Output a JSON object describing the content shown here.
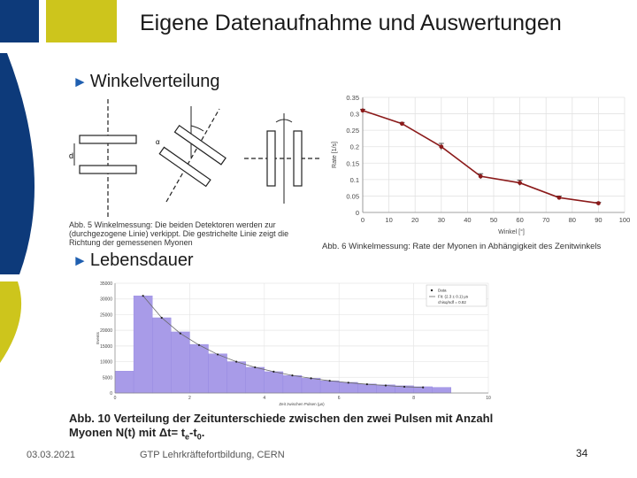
{
  "slide": {
    "title": "Eigene Datenaufnahme und Auswertungen",
    "bullet1": "Winkelverteilung",
    "bullet2": "Lebensdauer",
    "bullet_arrow": "►",
    "caption_abb5": "Abb. 5 Winkelmessung: Die beiden Detektoren werden zur (durchgezogene Linie) verkippt. Die gestrichelte Linie zeigt die Richtung der gemessenen Myonen",
    "caption_abb6": "Abb. 6 Winkelmessung: Rate der Myonen in Abhängigkeit des Zenitwinkels",
    "caption_abb10_line1": "Abb. 10 Verteilung der Zeitunterschiede zwischen den zwei Pulsen mit Anzahl",
    "caption_abb10_line2": "Myonen N(t) mit Δt= t",
    "caption_abb10_sub1": "e",
    "caption_abb10_mid": "-t",
    "caption_abb10_sub2": "0",
    "caption_abb10_end": ".",
    "detector_label_d": "d",
    "diagram_label_alpha": "α",
    "footer_date": "03.03.2021",
    "footer_org": "GTP Lehrkräftefortbildung, CERN",
    "page_number": "34",
    "colors": {
      "blue": "#0d3a7a",
      "yellow": "#cdc51c",
      "line": "#8b1a1a",
      "bars": "#a89be8"
    }
  },
  "chart_data": [
    {
      "type": "line",
      "x": [
        0,
        15,
        30,
        45,
        60,
        75,
        90
      ],
      "series": [
        {
          "values": [
            0.31,
            0.27,
            0.2,
            0.11,
            0.09,
            0.045,
            0.028
          ]
        }
      ],
      "error_bars": [
        0.004,
        0.004,
        0.01,
        0.008,
        0.008,
        0.005,
        0.003
      ],
      "xlabel": "Winkel [°]",
      "ylabel": "Rate [1/s]",
      "xlim": [
        0,
        100
      ],
      "ylim": [
        0,
        0.35
      ],
      "xticks": [
        "0",
        "10",
        "20",
        "30",
        "40",
        "50",
        "60",
        "70",
        "80",
        "90",
        "100"
      ],
      "yticks": [
        "0",
        "0.05",
        "0.1",
        "0.15",
        "0.2",
        "0.25",
        "0.3",
        "0.35"
      ],
      "grid": true
    },
    {
      "type": "bar",
      "bins": [
        0,
        0.5,
        1,
        1.5,
        2,
        2.5,
        3,
        3.5,
        4,
        4.5,
        5,
        5.5,
        6,
        6.5,
        7,
        7.5,
        8,
        8.5
      ],
      "values": [
        7000,
        31000,
        24000,
        19500,
        15500,
        12500,
        10000,
        8200,
        6800,
        5600,
        4700,
        3900,
        3400,
        2900,
        2600,
        2300,
        2000,
        1800
      ],
      "fit_points": [
        31000,
        24000,
        19000,
        15300,
        12300,
        10000,
        8200,
        6800,
        5600,
        4700,
        3900,
        3300,
        2800,
        2400,
        2000,
        1800
      ],
      "xlabel": "Zeit zwischen Pulsen (µs)",
      "ylabel": "Events",
      "xlim": [
        0,
        10
      ],
      "ylim": [
        0,
        35000
      ],
      "xticks": [
        "0",
        "2",
        "4",
        "6",
        "8",
        "10"
      ],
      "yticks": [
        "0",
        "5000",
        "10000",
        "15000",
        "20000",
        "25000",
        "30000",
        "35000"
      ],
      "legend": [
        "Data",
        "Fit: (2.3 ± 0.1) µs",
        "chisq/ndf = 0.82"
      ],
      "legend_position": "top-right",
      "grid": true
    }
  ]
}
